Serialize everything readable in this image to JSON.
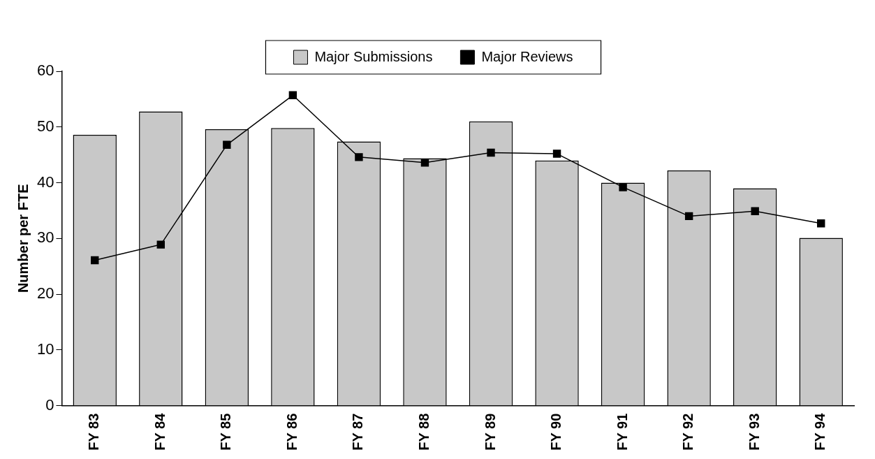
{
  "chart_data": {
    "type": "bar",
    "ylabel": "Number per FTE",
    "categories": [
      "FY 83",
      "FY 84",
      "FY 85",
      "FY 86",
      "FY 87",
      "FY 88",
      "FY 89",
      "FY 90",
      "FY 91",
      "FY 92",
      "FY 93",
      "FY 94"
    ],
    "series": [
      {
        "name": "Major Submissions",
        "color": "#c8c8c8",
        "values": [
          48.6,
          52.8,
          49.6,
          49.8,
          47.4,
          44.4,
          51.0,
          44.0,
          40.0,
          42.2,
          39.0,
          30.1
        ]
      },
      {
        "name": "Major Reviews",
        "type": "line",
        "color": "#000000",
        "marker": "square",
        "values": [
          26.1,
          28.9,
          46.8,
          55.7,
          44.6,
          43.6,
          45.4,
          45.2,
          39.2,
          34.0,
          34.9,
          32.7
        ]
      }
    ],
    "ylim": [
      0,
      60
    ],
    "yticks": [
      0,
      10,
      20,
      30,
      40,
      50,
      60
    ],
    "grid": false,
    "legend": "top"
  }
}
